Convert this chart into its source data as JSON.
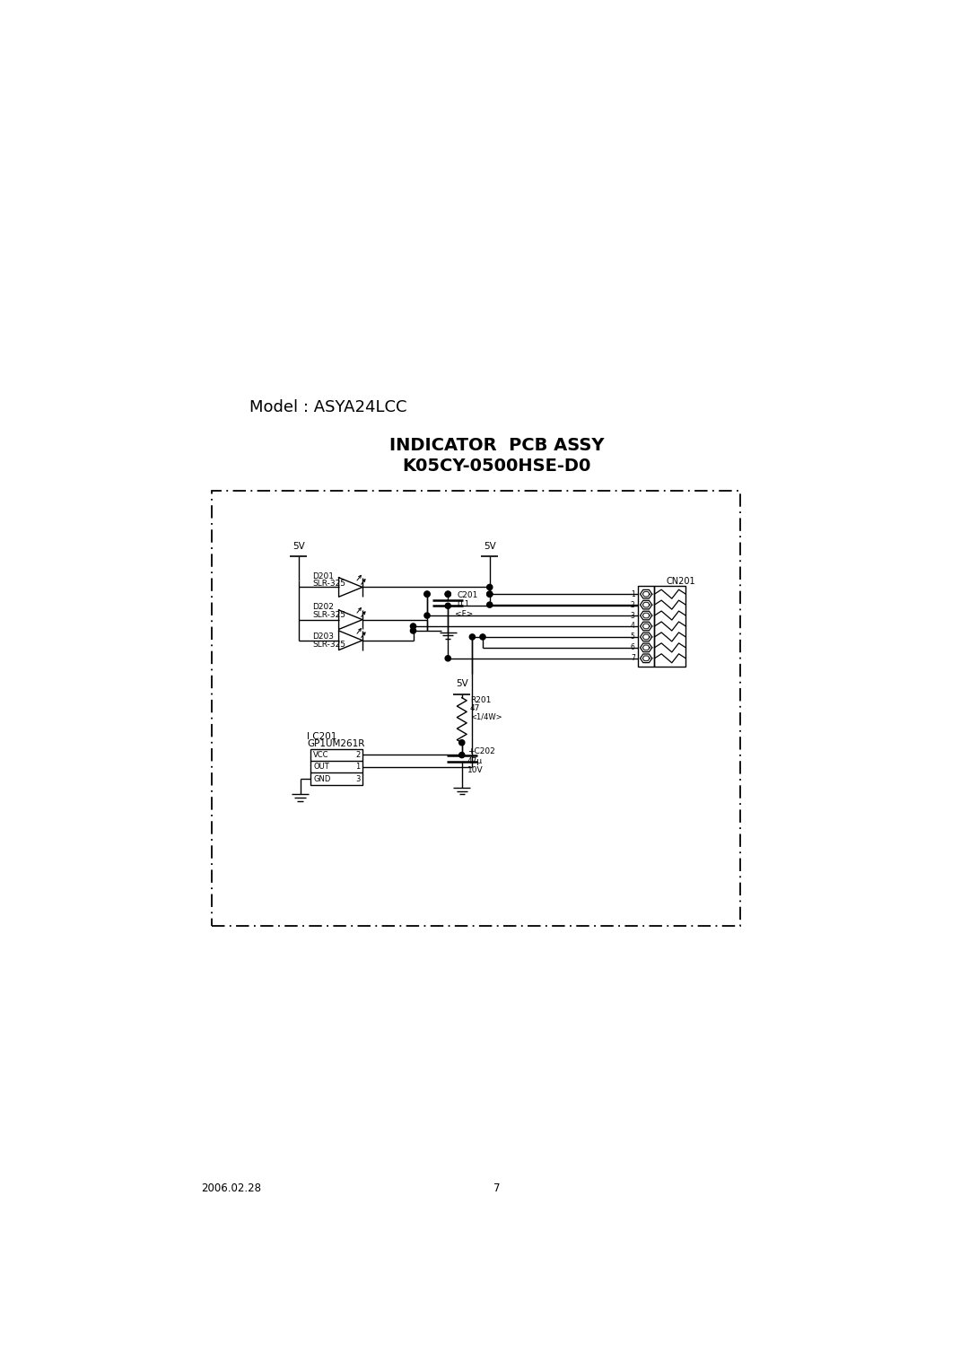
{
  "page_width": 10.8,
  "page_height": 15.27,
  "bg_color": "#ffffff",
  "title_model": "Model : ASYA24LCC",
  "title_pcb_line1": "INDICATOR  PCB ASSY",
  "title_pcb_line2": "K05CY-0500HSE-D0",
  "footer_date": "2006.02.28",
  "footer_page": "7",
  "line_color": "#000000",
  "lw": 1.0
}
